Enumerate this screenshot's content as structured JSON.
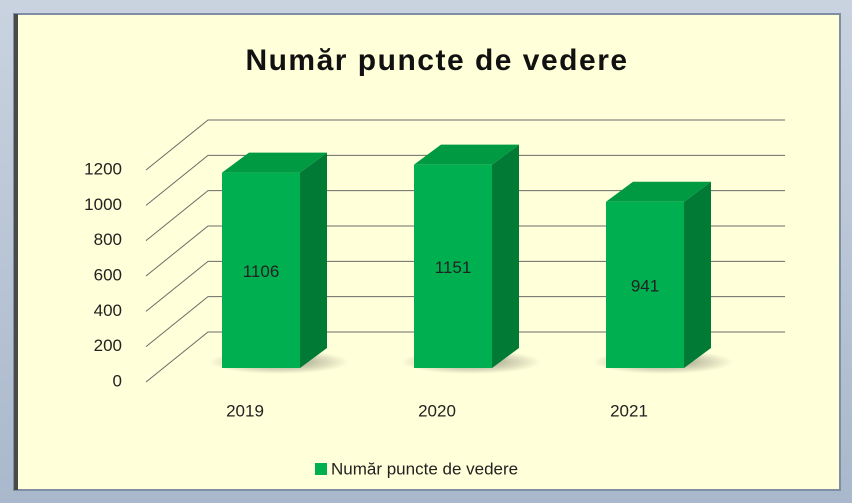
{
  "chart_data": {
    "type": "bar3d",
    "title": "Număr puncte de vedere",
    "categories": [
      "2019",
      "2020",
      "2021"
    ],
    "series": [
      {
        "name": "Număr puncte de vedere",
        "color": "#00b050",
        "values": [
          1106,
          1151,
          941
        ]
      }
    ],
    "ylim": [
      0,
      1200
    ],
    "yticks": [
      0,
      200,
      400,
      600,
      800,
      1000,
      1200
    ],
    "grid": true,
    "legend": "bottom"
  }
}
